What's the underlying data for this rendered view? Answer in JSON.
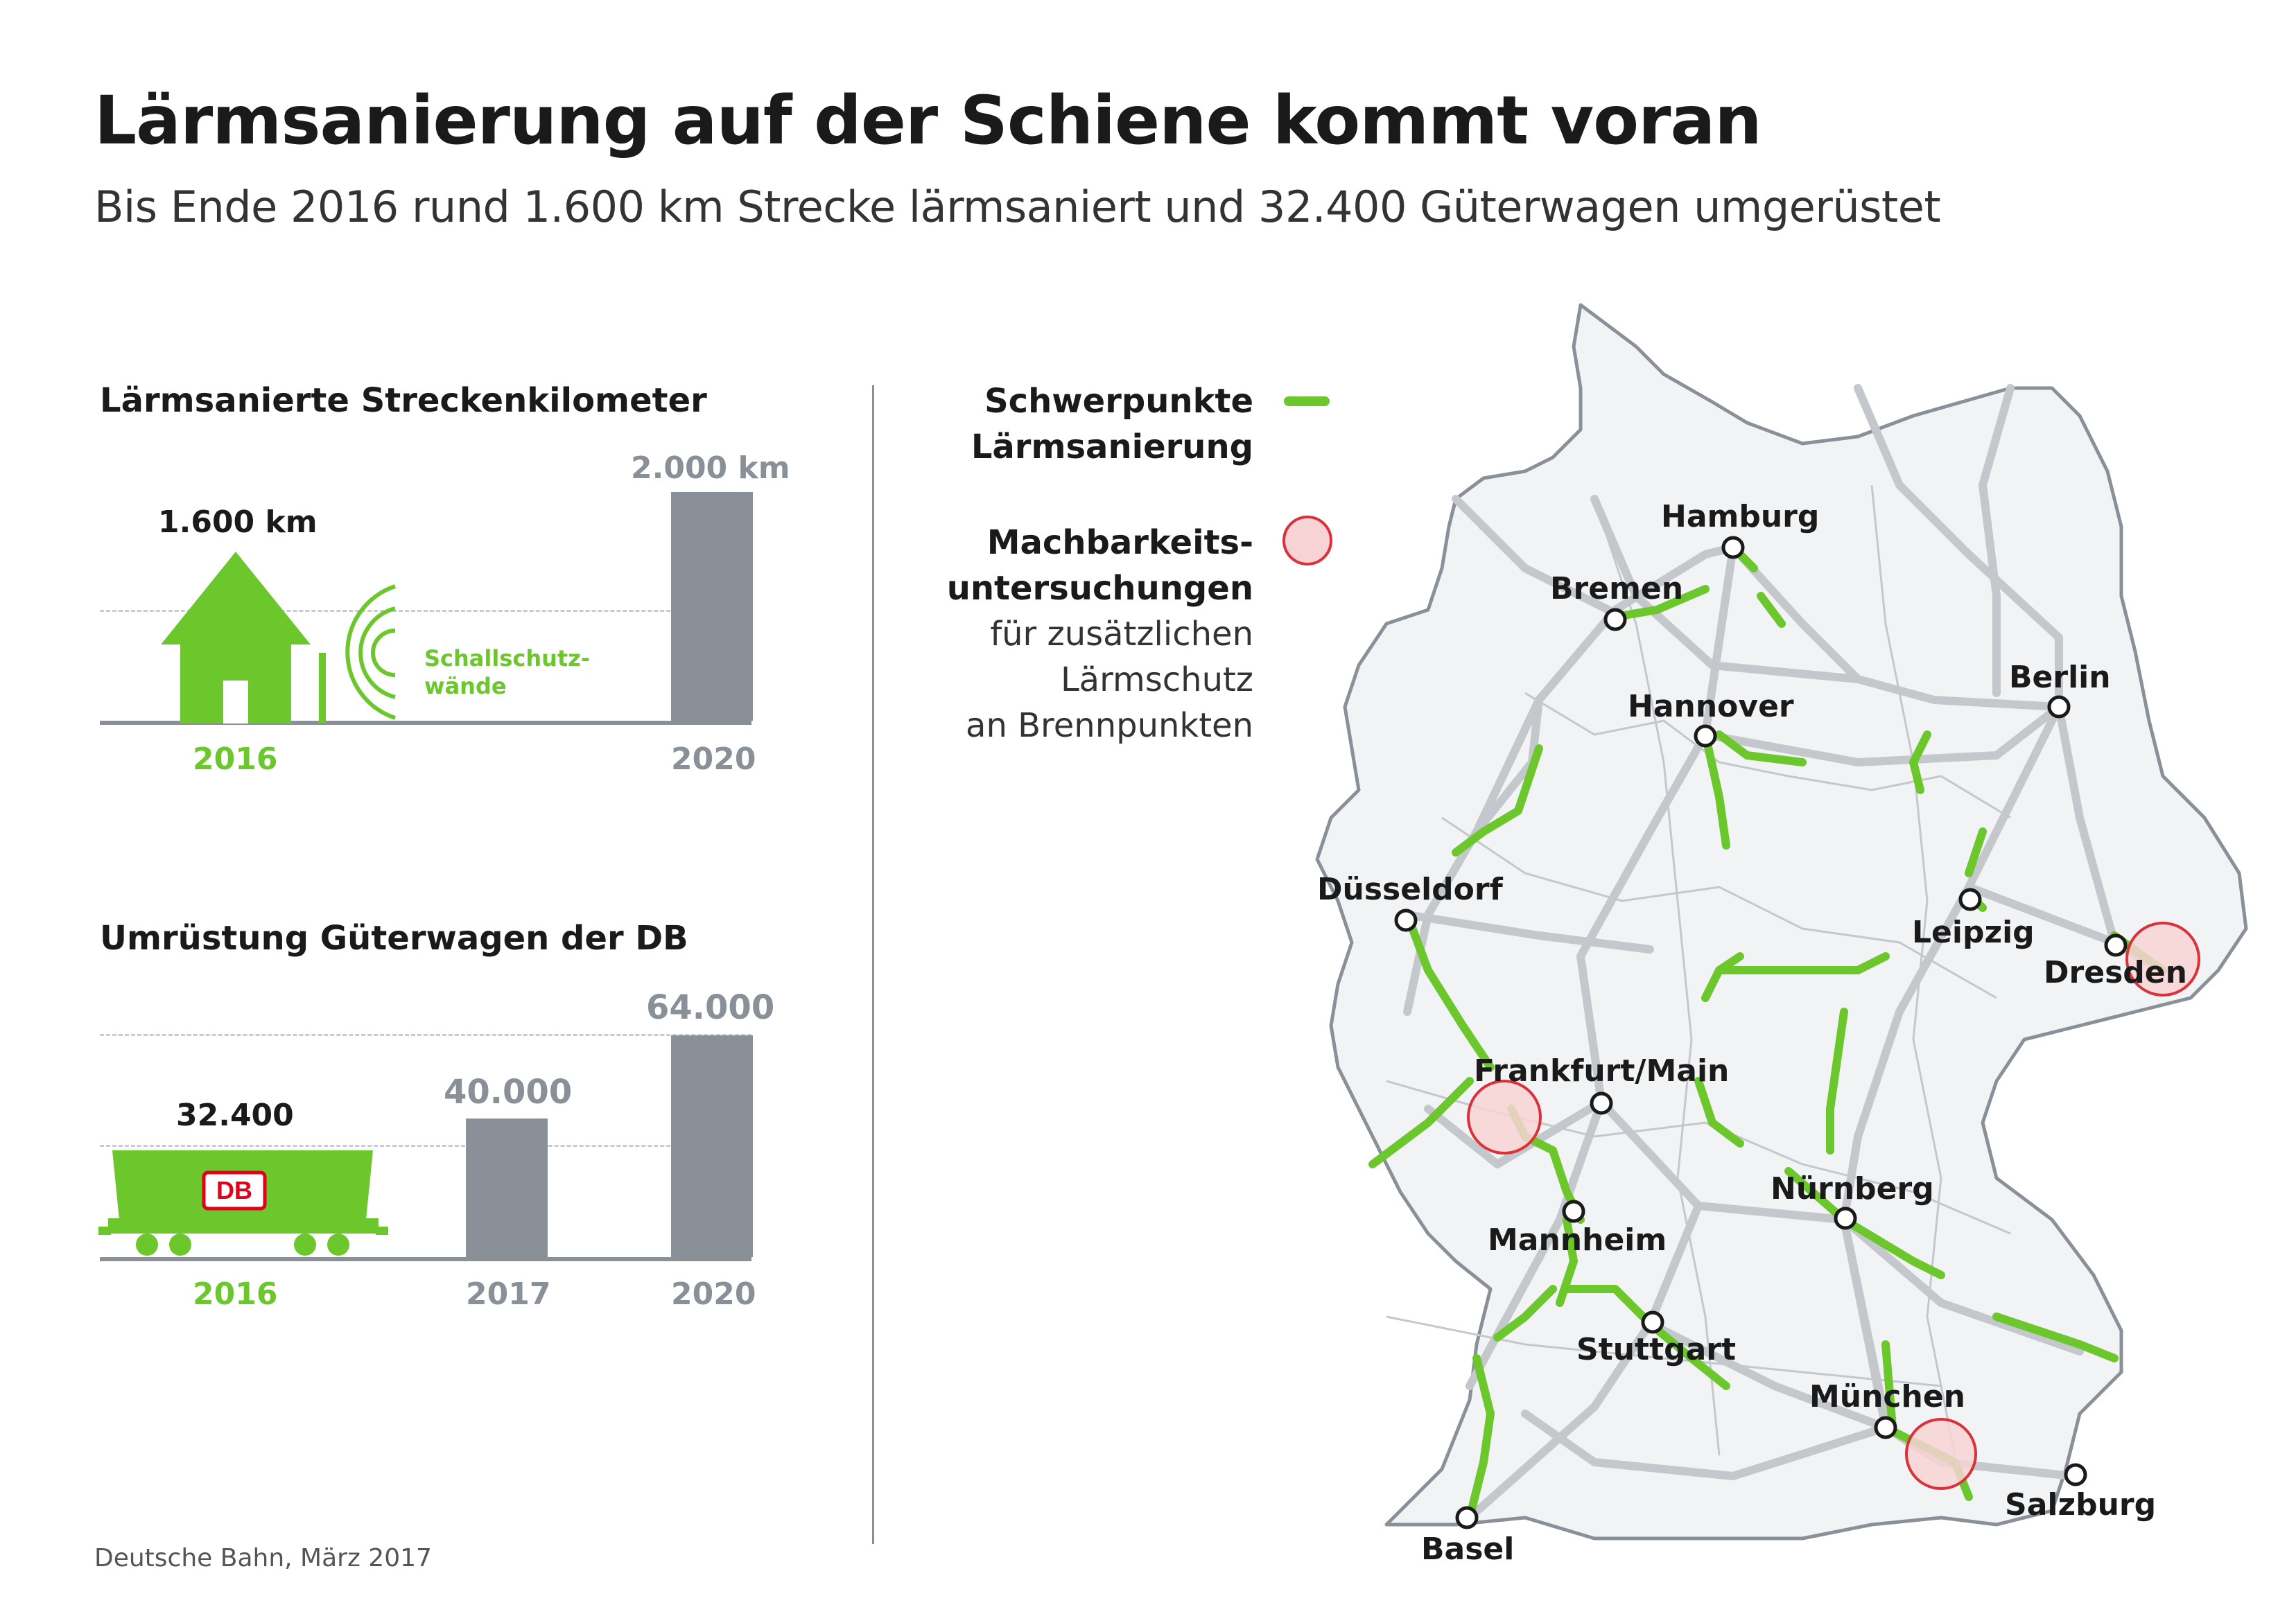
{
  "title": "Lärmsanierung auf der Schiene kommt voran",
  "subtitle": "Bis Ende 2016 rund 1.600 km Strecke lärmsaniert und 32.400 Güterwagen umgerüstet",
  "chart1": {
    "title": "Lärmsanierte Streckenkilometer",
    "value_2016_label": "1.600 km",
    "value_2020_label": "2.000 km",
    "walls_label_1": "Schallschutz-",
    "walls_label_2": "wände",
    "year_2016": "2016",
    "year_2020": "2020"
  },
  "chart2": {
    "title": "Umrüstung Güterwagen der DB",
    "value_2016_label": "32.400",
    "value_2017_label": "40.000",
    "value_2020_label": "64.000",
    "db_logo": "DB",
    "year_2016": "2016",
    "year_2017": "2017",
    "year_2020": "2020"
  },
  "chart_data": [
    {
      "type": "bar",
      "title": "Lärmsanierte Streckenkilometer",
      "categories": [
        "2016",
        "2020"
      ],
      "values": [
        1600,
        2000
      ],
      "unit": "km"
    },
    {
      "type": "bar",
      "title": "Umrüstung Güterwagen der DB",
      "categories": [
        "2016",
        "2017",
        "2020"
      ],
      "values": [
        32400,
        40000,
        64000
      ]
    }
  ],
  "legend": {
    "focus_line_1": "Schwerpunkte",
    "focus_line_2": "Lärmsanierung",
    "study_line_1": "Machbarkeits-",
    "study_line_2": "untersuchungen",
    "study_line_3": "für zusätzlichen",
    "study_line_4": "Lärmschutz",
    "study_line_5": "an Brennpunkten"
  },
  "map": {
    "cities": {
      "hamburg": "Hamburg",
      "bremen": "Bremen",
      "hannover": "Hannover",
      "berlin": "Berlin",
      "duesseldorf": "Düsseldorf",
      "leipzig": "Leipzig",
      "dresden": "Dresden",
      "frankfurt": "Frankfurt/Main",
      "nuernberg": "Nürnberg",
      "mannheim": "Mannheim",
      "stuttgart": "Stuttgart",
      "muenchen": "München",
      "salzburg": "Salzburg",
      "basel": "Basel"
    }
  },
  "colors": {
    "green": "#6cc72c",
    "gray": "#8a9098",
    "track": "#c4c8cc",
    "study_circle_fill": "#f8d3d5",
    "study_circle_stroke": "#d9323a"
  },
  "source": "Deutsche Bahn, März 2017"
}
